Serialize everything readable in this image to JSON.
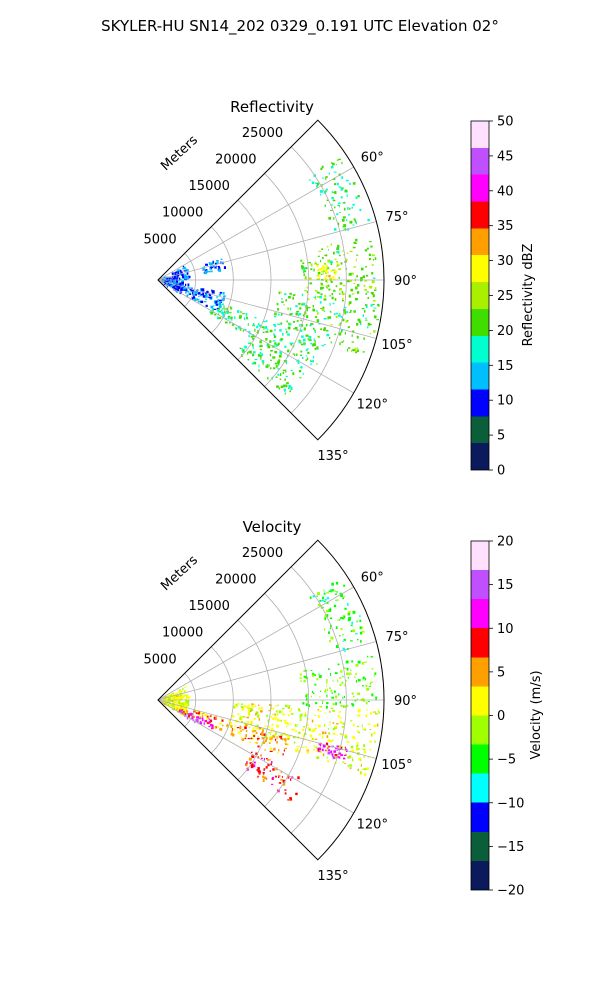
{
  "figure": {
    "suptitle": "SKYLER-HU  SN14_202  0329_0.191 UTC Elevation 02°"
  },
  "chart_data": [
    {
      "type": "heatmap",
      "projection": "polar-sector",
      "title": "Reflectivity",
      "radial_label": "Meters",
      "radial_ticks": [
        "5000",
        "10000",
        "15000",
        "20000",
        "25000"
      ],
      "radial_tick_values": [
        5000,
        10000,
        15000,
        20000,
        25000
      ],
      "r_max": 30000,
      "angle_ticks": [
        "60°",
        "75°",
        "90°",
        "105°",
        "120°",
        "135°"
      ],
      "angle_tick_values": [
        60,
        75,
        90,
        105,
        120,
        135
      ],
      "theta_range": [
        45,
        135
      ],
      "grid": true,
      "colorbar": {
        "label": "Reflectivity dBZ",
        "ticks": [
          "0",
          "5",
          "10",
          "15",
          "20",
          "25",
          "30",
          "35",
          "40",
          "45",
          "50"
        ],
        "range": [
          0,
          50
        ],
        "stops": [
          "#0a1a5c",
          "#0b5e3a",
          "#0000ff",
          "#00bfff",
          "#00ffd0",
          "#40dd00",
          "#aaee00",
          "#ffff00",
          "#ffa000",
          "#ff0000",
          "#ff00ff",
          "#c050ff",
          "#ffe0ff"
        ]
      },
      "echo_regions": [
        {
          "theta": [
            55,
            75
          ],
          "r": [
            24000,
            29000
          ],
          "value": 20
        },
        {
          "theta": [
            78,
            95
          ],
          "r": [
            19000,
            29000
          ],
          "value": 22
        },
        {
          "theta": [
            95,
            110
          ],
          "r": [
            16000,
            29500
          ],
          "value": 21
        },
        {
          "theta": [
            110,
            122
          ],
          "r": [
            8000,
            24000
          ],
          "value": 19
        },
        {
          "theta": [
            122,
            132
          ],
          "r": [
            14000,
            23000
          ],
          "value": 20
        },
        {
          "theta": [
            60,
            120
          ],
          "r": [
            500,
            4000
          ],
          "value": 11
        },
        {
          "theta": [
            70,
            80
          ],
          "r": [
            6000,
            9000
          ],
          "value": 12
        },
        {
          "theta": [
            100,
            118
          ],
          "r": [
            3000,
            9000
          ],
          "value": 12
        },
        {
          "theta": [
            84,
            90
          ],
          "r": [
            21000,
            24000
          ],
          "value": 28
        }
      ]
    },
    {
      "type": "heatmap",
      "projection": "polar-sector",
      "title": "Velocity",
      "radial_label": "Meters",
      "radial_ticks": [
        "5000",
        "10000",
        "15000",
        "20000",
        "25000"
      ],
      "radial_tick_values": [
        5000,
        10000,
        15000,
        20000,
        25000
      ],
      "r_max": 30000,
      "angle_ticks": [
        "60°",
        "75°",
        "90°",
        "105°",
        "120°",
        "135°"
      ],
      "angle_tick_values": [
        60,
        75,
        90,
        105,
        120,
        135
      ],
      "theta_range": [
        45,
        135
      ],
      "grid": true,
      "colorbar": {
        "label": "Velocity (m/s)",
        "ticks": [
          "−20",
          "−15",
          "−10",
          "−5",
          "0",
          "5",
          "10",
          "15",
          "20"
        ],
        "range": [
          -20,
          20
        ],
        "stops": [
          "#0a1a5c",
          "#0b5e3a",
          "#0000ff",
          "#00ffff",
          "#00ff00",
          "#a0ff00",
          "#ffff00",
          "#ffa000",
          "#ff0000",
          "#ff00ff",
          "#c050ff",
          "#ffe0ff"
        ]
      },
      "echo_regions": [
        {
          "theta": [
            55,
            75
          ],
          "r": [
            24000,
            29000
          ],
          "value": -5
        },
        {
          "theta": [
            78,
            92
          ],
          "r": [
            19000,
            29000
          ],
          "value": -3
        },
        {
          "theta": [
            92,
            110
          ],
          "r": [
            10000,
            29500
          ],
          "value": 1
        },
        {
          "theta": [
            105,
            115
          ],
          "r": [
            3000,
            18000
          ],
          "value": 5
        },
        {
          "theta": [
            118,
            128
          ],
          "r": [
            14000,
            22000
          ],
          "value": 8
        },
        {
          "theta": [
            60,
            120
          ],
          "r": [
            500,
            4000
          ],
          "value": 1
        },
        {
          "theta": [
            110,
            120
          ],
          "r": [
            3000,
            8000
          ],
          "value": 12
        },
        {
          "theta": [
            104,
            108
          ],
          "r": [
            22000,
            26000
          ],
          "value": 12
        }
      ]
    }
  ]
}
